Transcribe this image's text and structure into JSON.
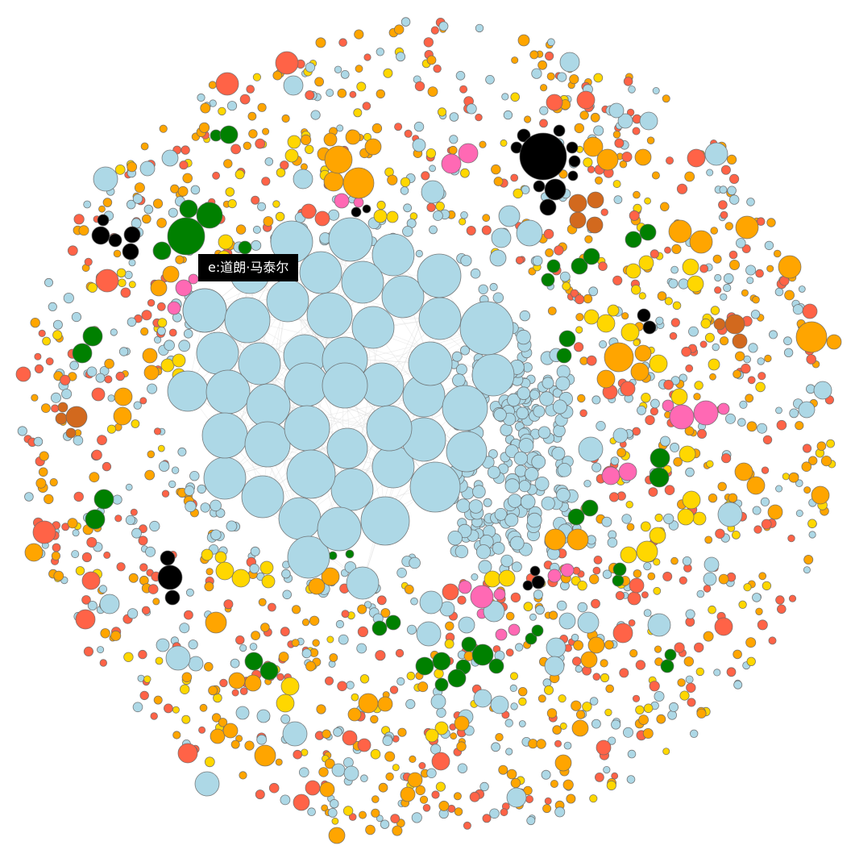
{
  "tooltip": {
    "text": "e:道朗·马泰尔"
  },
  "palette": {
    "light-blue": "#add8e6",
    "tomato": "#ff6347",
    "orange": "#ffa500",
    "gold": "#ffd700",
    "green": "#008000",
    "black": "#000000",
    "hot-pink": "#ff69b4",
    "chocolate": "#d2691e",
    "link": "#dddddd"
  }
}
